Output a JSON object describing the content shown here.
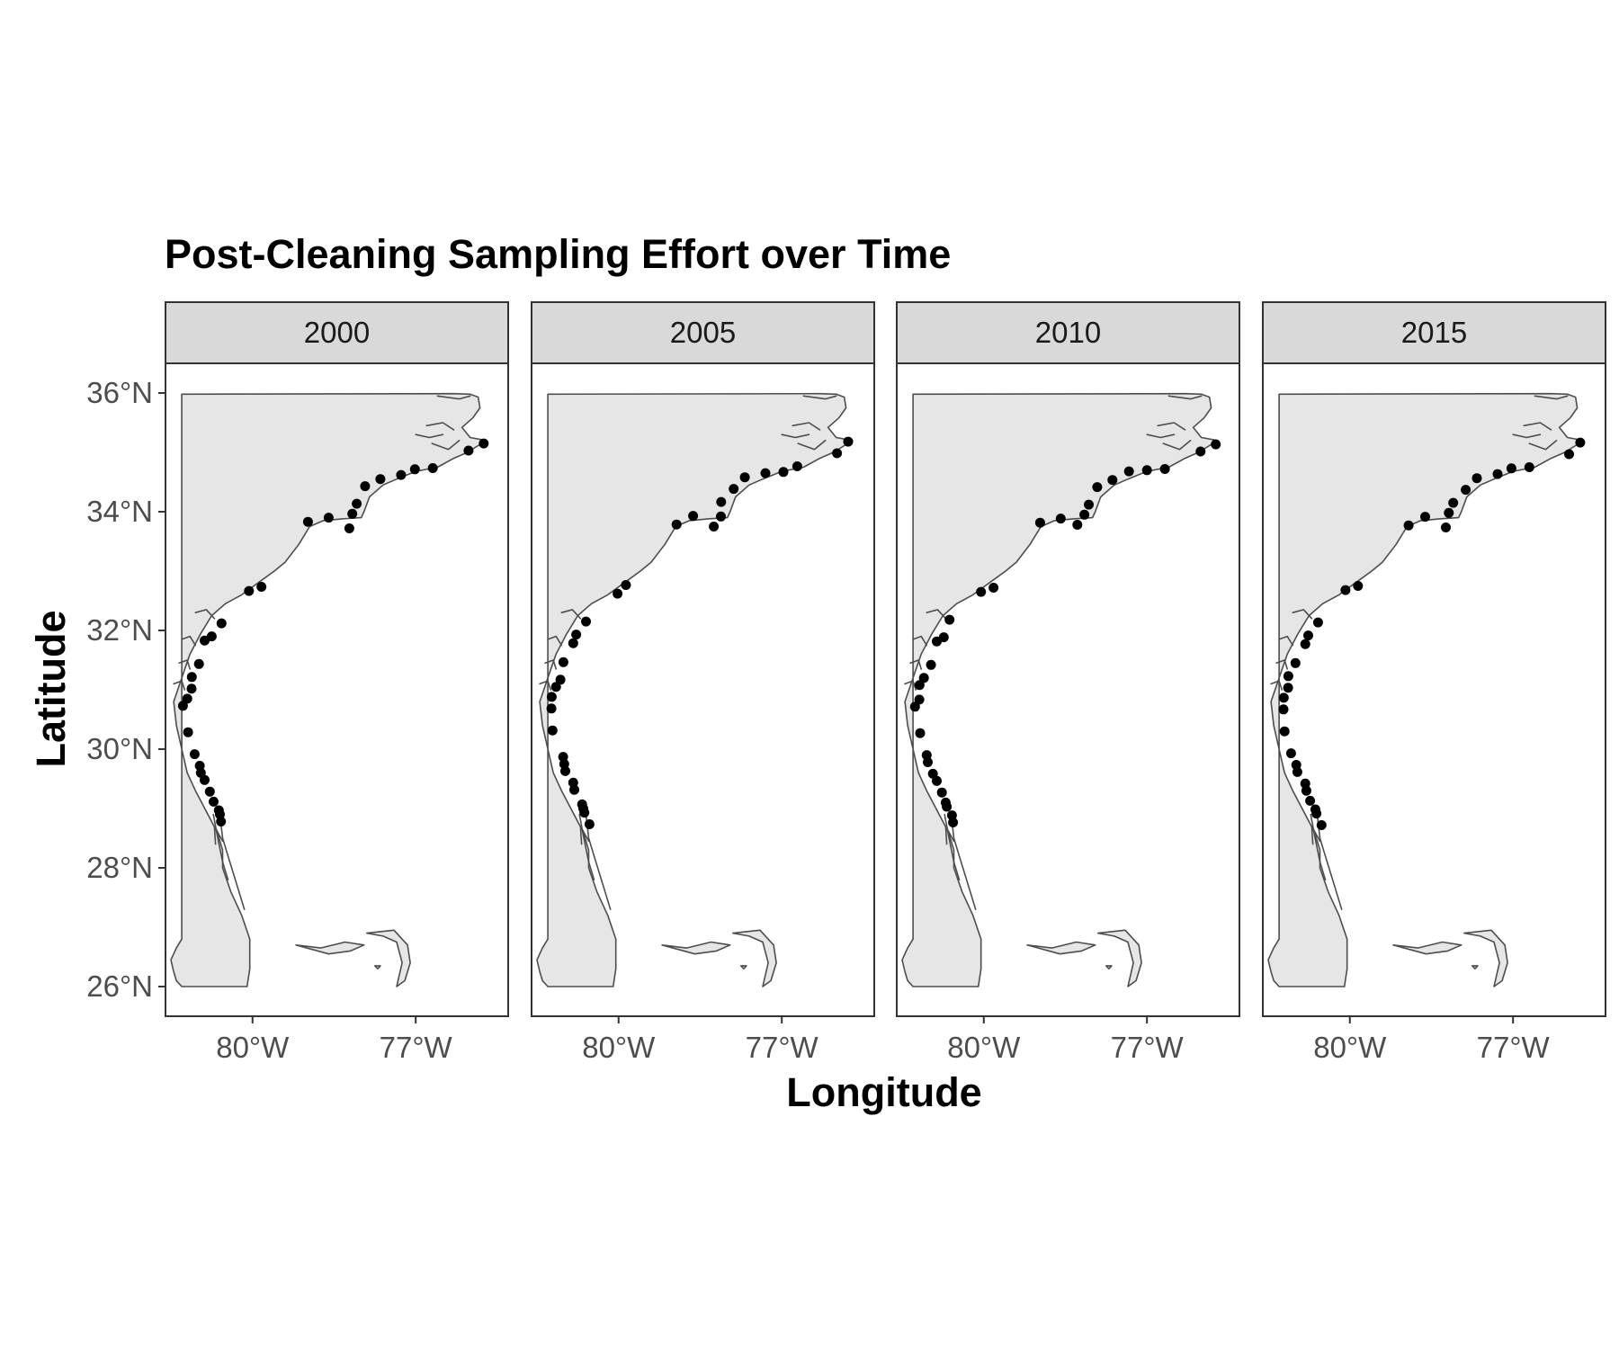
{
  "chart_data": {
    "type": "scatter",
    "title": "Post-Cleaning Sampling Effort over Time",
    "xlabel": "Longitude",
    "ylabel": "Latitude",
    "xlim": [
      -81.6,
      -75.3
    ],
    "ylim": [
      25.5,
      36.5
    ],
    "x_ticks": [
      {
        "value": -80,
        "label": "80°W"
      },
      {
        "value": -77,
        "label": "77°W"
      }
    ],
    "y_ticks": [
      {
        "value": 26,
        "label": "26°N"
      },
      {
        "value": 28,
        "label": "28°N"
      },
      {
        "value": 30,
        "label": "30°N"
      },
      {
        "value": 32,
        "label": "32°N"
      },
      {
        "value": 34,
        "label": "34°N"
      },
      {
        "value": 36,
        "label": "36°N"
      }
    ],
    "grid": false,
    "legend": "none",
    "facets": [
      "2000",
      "2005",
      "2010",
      "2015"
    ],
    "points": [
      [
        -80.55,
        28.75
      ],
      [
        -80.6,
        28.9
      ],
      [
        -80.65,
        29.0
      ],
      [
        -80.7,
        29.1
      ],
      [
        -80.8,
        29.3
      ],
      [
        -80.85,
        29.45
      ],
      [
        -80.95,
        29.6
      ],
      [
        -81.0,
        29.75
      ],
      [
        -81.05,
        29.9
      ],
      [
        -81.2,
        30.3
      ],
      [
        -81.25,
        30.7
      ],
      [
        -81.2,
        30.85
      ],
      [
        -81.15,
        31.05
      ],
      [
        -81.1,
        31.2
      ],
      [
        -81.0,
        31.45
      ],
      [
        -80.85,
        31.8
      ],
      [
        -80.75,
        31.9
      ],
      [
        -80.6,
        32.15
      ],
      [
        -80.05,
        32.65
      ],
      [
        -79.85,
        32.75
      ],
      [
        -78.95,
        33.8
      ],
      [
        -78.6,
        33.9
      ],
      [
        -78.25,
        33.75
      ],
      [
        -78.15,
        33.95
      ],
      [
        -78.1,
        34.15
      ],
      [
        -77.9,
        34.4
      ],
      [
        -77.65,
        34.55
      ],
      [
        -77.3,
        34.65
      ],
      [
        -77.0,
        34.7
      ],
      [
        -76.7,
        34.75
      ],
      [
        -76.0,
        35.0
      ],
      [
        -75.75,
        35.15
      ]
    ]
  },
  "colors": {
    "land": "#e6e6e6",
    "coastline": "#4d4d4d",
    "points": "#000000",
    "strip": "#d9d9d9",
    "panel_border": "#333333"
  }
}
